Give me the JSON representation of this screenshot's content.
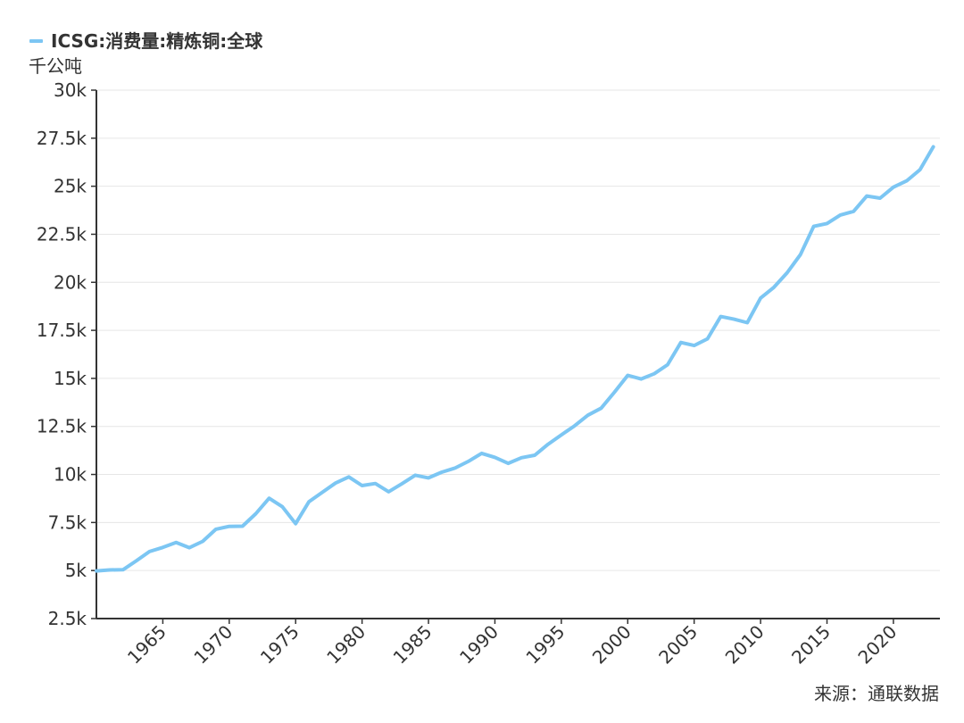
{
  "chart_data": {
    "type": "line",
    "title": "",
    "xlabel": "",
    "ylabel": "千公吨",
    "legend": {
      "placement": "top-left",
      "entries": [
        "ICSG:消费量:精炼铜:全球"
      ]
    },
    "series": [
      {
        "name": "ICSG:消费量:精炼铜:全球",
        "color": "#7cc6f3",
        "x": [
          1960,
          1961,
          1962,
          1963,
          1964,
          1965,
          1966,
          1967,
          1968,
          1969,
          1970,
          1971,
          1972,
          1973,
          1974,
          1975,
          1976,
          1977,
          1978,
          1979,
          1980,
          1981,
          1982,
          1983,
          1984,
          1985,
          1986,
          1987,
          1988,
          1989,
          1990,
          1991,
          1992,
          1993,
          1994,
          1995,
          1996,
          1997,
          1998,
          1999,
          2000,
          2001,
          2002,
          2003,
          2004,
          2005,
          2006,
          2007,
          2008,
          2009,
          2010,
          2011,
          2012,
          2013,
          2014,
          2015,
          2016,
          2017,
          2018,
          2019,
          2020,
          2021,
          2022,
          2023
        ],
        "values": [
          4980,
          5030,
          5040,
          5500,
          5990,
          6200,
          6460,
          6190,
          6520,
          7150,
          7300,
          7310,
          7960,
          8760,
          8320,
          7440,
          8580,
          9070,
          9550,
          9870,
          9420,
          9530,
          9100,
          9520,
          9960,
          9820,
          10120,
          10330,
          10680,
          11100,
          10890,
          10580,
          10870,
          11000,
          11570,
          12060,
          12530,
          13080,
          13450,
          14280,
          15160,
          14970,
          15240,
          15710,
          16870,
          16710,
          17060,
          18220,
          18080,
          17900,
          19180,
          19740,
          20500,
          21440,
          22910,
          23060,
          23500,
          23690,
          24490,
          24380,
          24950,
          25280,
          25860,
          27050
        ]
      }
    ],
    "xlim": [
      1960,
      2023.5
    ],
    "ylim": [
      2500,
      30000
    ],
    "yticks": [
      2500,
      5000,
      7500,
      10000,
      12500,
      15000,
      17500,
      20000,
      22500,
      25000,
      27500,
      30000
    ],
    "yticklabels": [
      "2.5k",
      "5k",
      "7.5k",
      "10k",
      "12.5k",
      "15k",
      "17.5k",
      "20k",
      "22.5k",
      "25k",
      "27.5k",
      "30k"
    ],
    "xticks": [
      1965,
      1970,
      1975,
      1980,
      1985,
      1990,
      1995,
      2000,
      2005,
      2010,
      2015,
      2020
    ],
    "xticklabels": [
      "1965",
      "1970",
      "1975",
      "1980",
      "1985",
      "1990",
      "1995",
      "2000",
      "2005",
      "2010",
      "2015",
      "2020"
    ],
    "grid": true,
    "source": "来源：通联数据"
  }
}
